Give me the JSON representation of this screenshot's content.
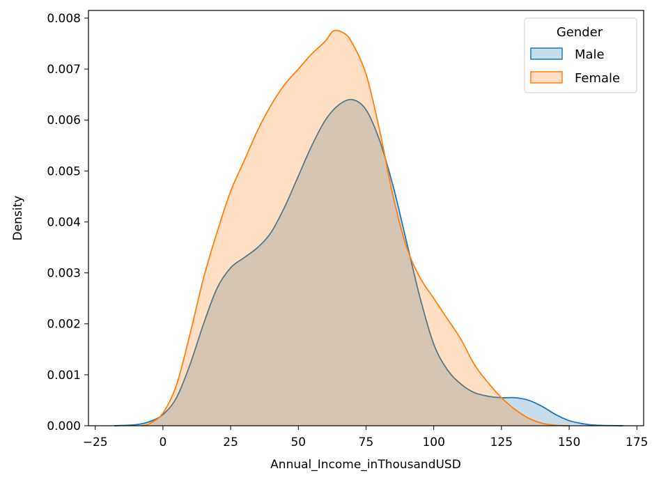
{
  "chart_data": {
    "type": "area",
    "subtype": "kde-density",
    "xlabel": "Annual_Income_inThousandUSD",
    "ylabel": "Density",
    "xlim": [
      -27.5,
      177.5
    ],
    "ylim": [
      0,
      0.00815
    ],
    "x_ticks": [
      -25,
      0,
      25,
      50,
      75,
      100,
      125,
      150,
      175
    ],
    "y_ticks": [
      0.0,
      0.001,
      0.002,
      0.003,
      0.004,
      0.005,
      0.006,
      0.007,
      0.008
    ],
    "x_tick_labels": [
      "−25",
      "0",
      "25",
      "50",
      "75",
      "100",
      "125",
      "150",
      "175"
    ],
    "y_tick_labels": [
      "0.000",
      "0.001",
      "0.002",
      "0.003",
      "0.004",
      "0.005",
      "0.006",
      "0.007",
      "0.008"
    ],
    "grid": false,
    "legend": {
      "title": "Gender",
      "placement": "top-right"
    },
    "series": [
      {
        "name": "Male",
        "color": "#1f77b4",
        "points": [
          [
            -18,
            0.0
          ],
          [
            -10,
            2e-05
          ],
          [
            -5,
            8e-05
          ],
          [
            0,
            0.00022
          ],
          [
            5,
            0.00055
          ],
          [
            10,
            0.0012
          ],
          [
            15,
            0.002
          ],
          [
            20,
            0.0027
          ],
          [
            25,
            0.0031
          ],
          [
            30,
            0.0033
          ],
          [
            35,
            0.0035
          ],
          [
            40,
            0.0038
          ],
          [
            45,
            0.0043
          ],
          [
            50,
            0.0049
          ],
          [
            55,
            0.0055
          ],
          [
            60,
            0.006
          ],
          [
            65,
            0.0063
          ],
          [
            70,
            0.0064
          ],
          [
            75,
            0.0062
          ],
          [
            80,
            0.0056
          ],
          [
            85,
            0.0047
          ],
          [
            90,
            0.0036
          ],
          [
            95,
            0.0025
          ],
          [
            100,
            0.0016
          ],
          [
            105,
            0.0011
          ],
          [
            110,
            0.00082
          ],
          [
            115,
            0.00065
          ],
          [
            120,
            0.00058
          ],
          [
            125,
            0.00055
          ],
          [
            130,
            0.00055
          ],
          [
            135,
            0.0005
          ],
          [
            140,
            0.00038
          ],
          [
            145,
            0.00022
          ],
          [
            150,
            0.0001
          ],
          [
            155,
            4e-05
          ],
          [
            160,
            1e-05
          ],
          [
            170,
            0.0
          ]
        ]
      },
      {
        "name": "Female",
        "color": "#ff7f0e",
        "points": [
          [
            -8,
            0.0
          ],
          [
            -5,
            4e-05
          ],
          [
            0,
            0.00025
          ],
          [
            5,
            0.0008
          ],
          [
            10,
            0.0018
          ],
          [
            15,
            0.0029
          ],
          [
            20,
            0.0038
          ],
          [
            25,
            0.0046
          ],
          [
            30,
            0.0052
          ],
          [
            35,
            0.0058
          ],
          [
            40,
            0.0063
          ],
          [
            45,
            0.0067
          ],
          [
            50,
            0.007
          ],
          [
            55,
            0.0073
          ],
          [
            60,
            0.00755
          ],
          [
            63,
            0.00775
          ],
          [
            67,
            0.0077
          ],
          [
            70,
            0.0075
          ],
          [
            75,
            0.0069
          ],
          [
            80,
            0.0058
          ],
          [
            85,
            0.0045
          ],
          [
            90,
            0.0035
          ],
          [
            95,
            0.0029
          ],
          [
            100,
            0.0025
          ],
          [
            105,
            0.0021
          ],
          [
            110,
            0.0017
          ],
          [
            115,
            0.0012
          ],
          [
            120,
            0.00085
          ],
          [
            125,
            0.00055
          ],
          [
            130,
            0.00032
          ],
          [
            135,
            0.00015
          ],
          [
            140,
            5e-05
          ],
          [
            145,
            1e-05
          ],
          [
            150,
            0.0
          ]
        ]
      }
    ]
  }
}
